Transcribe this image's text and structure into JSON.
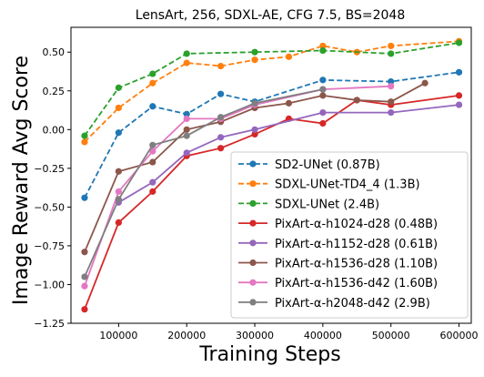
{
  "chart_data": {
    "type": "line",
    "title": "LensArt, 256, SDXL-AE, CFG 7.5, BS=2048",
    "xlabel": "Training Steps",
    "ylabel": "Image Reward Avg Score",
    "xlim": [
      30000,
      618000
    ],
    "ylim": [
      -1.25,
      0.66
    ],
    "xticks": [
      100000,
      200000,
      300000,
      400000,
      500000,
      600000
    ],
    "xtick_labels": [
      "100000",
      "200000",
      "300000",
      "400000",
      "500000",
      "600000"
    ],
    "yticks": [
      -1.25,
      -1.0,
      -0.75,
      -0.5,
      -0.25,
      0.0,
      0.25,
      0.5
    ],
    "ytick_labels": [
      "−1.25",
      "−1.00",
      "−0.75",
      "−0.50",
      "−0.25",
      "0.00",
      "0.25",
      "0.50"
    ],
    "grid": false,
    "legend_position": "lower-right",
    "series": [
      {
        "name": "SD2-UNet (0.87B)",
        "color": "#1f77b4",
        "dashed": true,
        "x": [
          50000,
          100000,
          150000,
          200000,
          250000,
          300000,
          400000,
          500000,
          600000
        ],
        "y": [
          -0.44,
          -0.02,
          0.15,
          0.1,
          0.23,
          0.18,
          0.32,
          0.31,
          0.37
        ]
      },
      {
        "name": "SDXL-UNet-TD4_4 (1.3B)",
        "color": "#ff7f0e",
        "dashed": true,
        "x": [
          50000,
          100000,
          150000,
          200000,
          250000,
          300000,
          350000,
          400000,
          450000,
          500000,
          600000
        ],
        "y": [
          -0.08,
          0.14,
          0.3,
          0.43,
          0.41,
          0.45,
          0.47,
          0.54,
          0.5,
          0.54,
          0.57
        ]
      },
      {
        "name": "SDXL-UNet (2.4B)",
        "color": "#2ca02c",
        "dashed": true,
        "x": [
          50000,
          100000,
          150000,
          200000,
          300000,
          400000,
          500000,
          600000
        ],
        "y": [
          -0.04,
          0.27,
          0.36,
          0.49,
          0.5,
          0.51,
          0.49,
          0.56
        ]
      },
      {
        "name": "PixArt-α-h1024-d28 (0.48B)",
        "color": "#d62728",
        "dashed": false,
        "x": [
          50000,
          100000,
          150000,
          200000,
          250000,
          300000,
          350000,
          400000,
          450000,
          500000,
          600000
        ],
        "y": [
          -1.16,
          -0.6,
          -0.4,
          -0.17,
          -0.12,
          -0.03,
          0.07,
          0.04,
          0.19,
          0.16,
          0.22
        ]
      },
      {
        "name": "PixArt-α-h1152-d28 (0.61B)",
        "color": "#9467bd",
        "dashed": false,
        "x": [
          100000,
          150000,
          200000,
          250000,
          300000,
          400000,
          500000,
          600000
        ],
        "y": [
          -0.47,
          -0.34,
          -0.15,
          -0.05,
          0.0,
          0.11,
          0.11,
          0.16
        ]
      },
      {
        "name": "PixArt-α-h1536-d28 (1.10B)",
        "color": "#8c564b",
        "dashed": false,
        "x": [
          50000,
          100000,
          150000,
          200000,
          250000,
          300000,
          350000,
          400000,
          450000,
          500000,
          550000
        ],
        "y": [
          -0.79,
          -0.27,
          -0.21,
          0.0,
          0.05,
          0.14,
          0.17,
          0.22,
          0.19,
          0.18,
          0.3
        ]
      },
      {
        "name": "PixArt-α-h1536-d42 (1.60B)",
        "color": "#e377c2",
        "dashed": false,
        "x": [
          50000,
          100000,
          150000,
          200000,
          250000,
          300000,
          400000,
          500000
        ],
        "y": [
          -1.01,
          -0.4,
          -0.14,
          0.07,
          0.07,
          0.16,
          0.26,
          0.28
        ]
      },
      {
        "name": "PixArt-α-h2048-d42 (2.9B)",
        "color": "#7f7f7f",
        "dashed": false,
        "x": [
          50000,
          100000,
          150000,
          200000,
          250000,
          300000,
          400000
        ],
        "y": [
          -0.95,
          -0.45,
          -0.1,
          -0.04,
          0.08,
          0.17,
          0.26
        ]
      }
    ]
  }
}
